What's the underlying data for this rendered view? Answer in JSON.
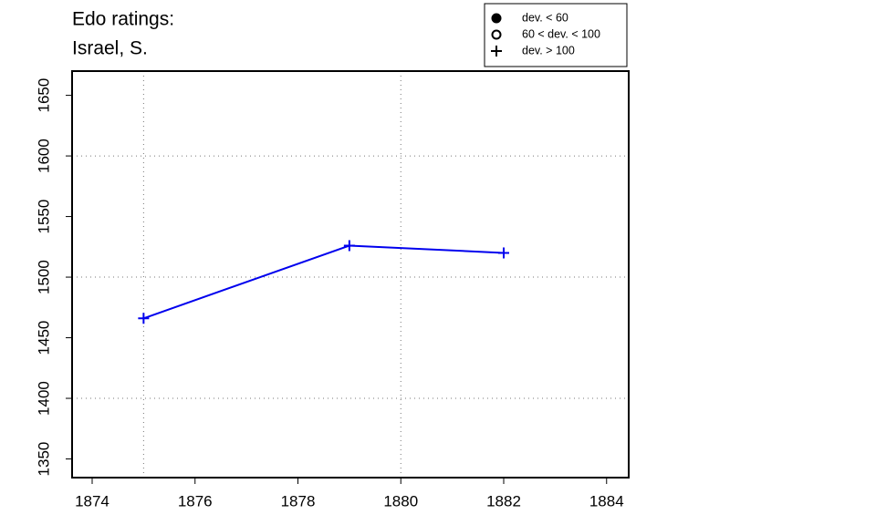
{
  "chart_data": {
    "type": "line",
    "title_lines": [
      "Edo ratings:",
      "Israel, S."
    ],
    "x": [
      1875,
      1879,
      1882
    ],
    "series": [
      {
        "name": "Israel, S.",
        "color": "#0000ee",
        "values": [
          1466,
          1526,
          1520
        ],
        "marker": "plus"
      }
    ],
    "xlim": [
      1873.61,
      1884.43
    ],
    "ylim": [
      1334.6,
      1670
    ],
    "xticks": [
      1874,
      1876,
      1878,
      1880,
      1882,
      1884
    ],
    "yticks": [
      1350,
      1400,
      1450,
      1500,
      1550,
      1600,
      1650
    ],
    "xgrid": [
      1875,
      1880
    ],
    "ygrid": [
      1400,
      1500,
      1600
    ],
    "legend": {
      "position": "top-right",
      "entries": [
        {
          "label": "dev. < 60",
          "marker": "filled-circle"
        },
        {
          "label": "60 < dev. < 100",
          "marker": "open-circle"
        },
        {
          "label": "dev. > 100",
          "marker": "plus"
        }
      ]
    }
  }
}
